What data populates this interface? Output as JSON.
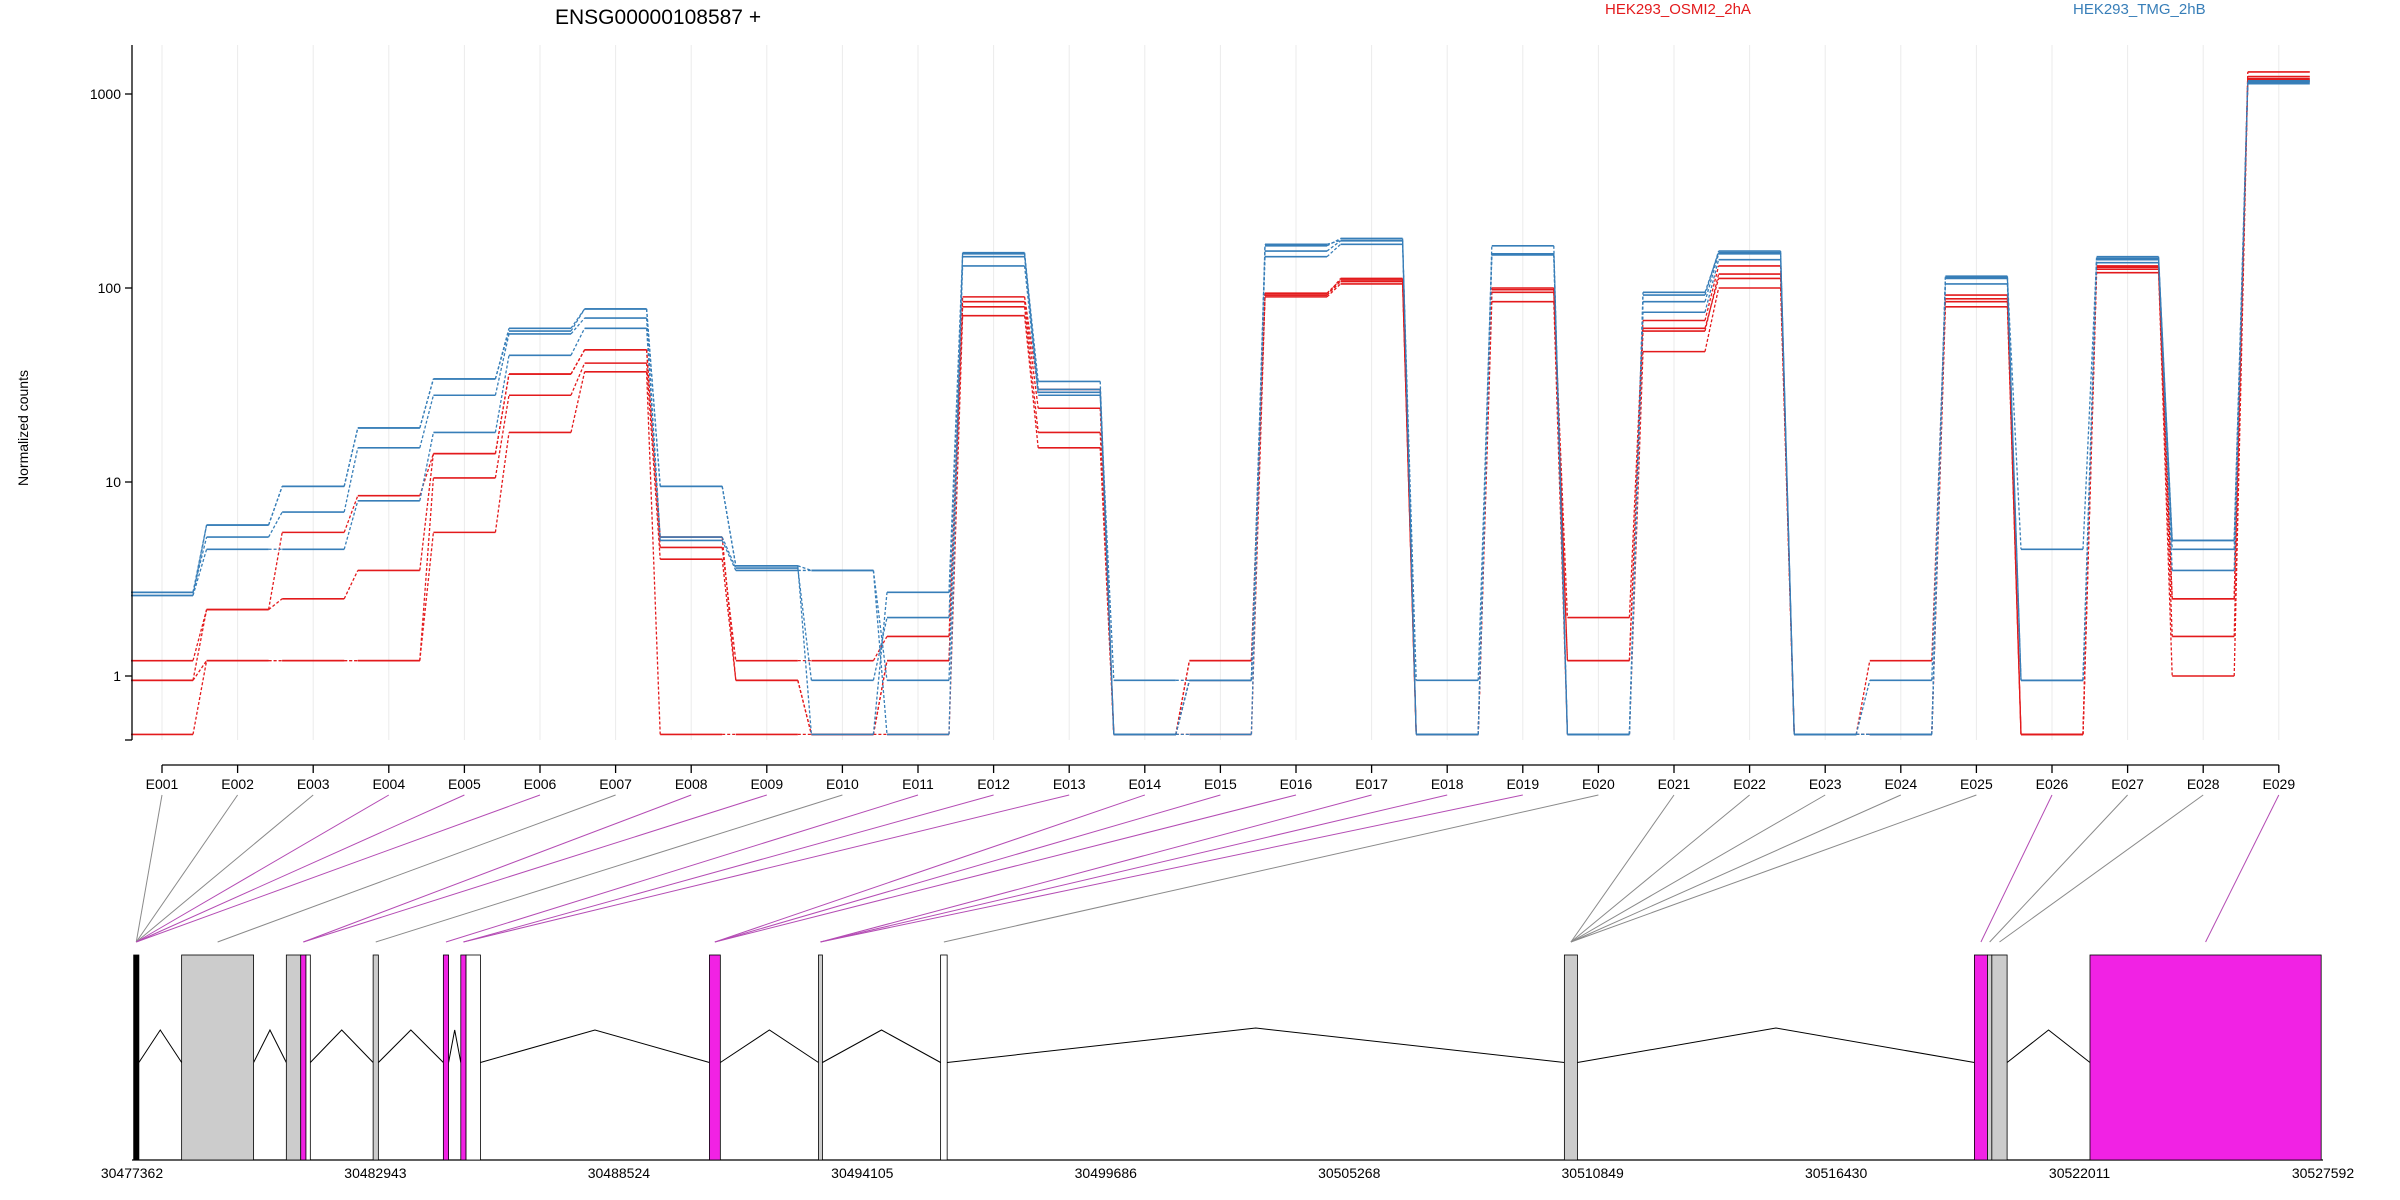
{
  "chart_data": {
    "type": "line",
    "title": "ENSG00000108587 +",
    "ylabel": "Normalized counts",
    "xlabel": "",
    "y_scale": "log",
    "ylim": [
      0.5,
      1800
    ],
    "y_ticks": [
      1,
      10,
      100,
      1000
    ],
    "y_tick_labels": [
      "1",
      "10",
      "100",
      "1000"
    ],
    "grid": "vertical",
    "legend_placement": "top",
    "categories": [
      "E001",
      "E002",
      "E003",
      "E004",
      "E005",
      "E006",
      "E007",
      "E008",
      "E009",
      "E010",
      "E011",
      "E012",
      "E013",
      "E014",
      "E015",
      "E016",
      "E017",
      "E018",
      "E019",
      "E020",
      "E021",
      "E022",
      "E023",
      "E024",
      "E025",
      "E026",
      "E027",
      "E028",
      "E029"
    ],
    "legend": [
      {
        "label": "HEK293_OSMI2_2hA",
        "color": "#E31A1C"
      },
      {
        "label": "HEK293_TMG_2hB",
        "color": "#377EB8"
      }
    ],
    "series": [
      {
        "group": 1,
        "color": "#E31A1C",
        "values": [
          0.5,
          1.2,
          1.2,
          1.2,
          5.5,
          18,
          37,
          0.5,
          0.5,
          0.5,
          0.5,
          72,
          15,
          0.5,
          0.5,
          90,
          105,
          0.5,
          85,
          0.5,
          47,
          100,
          0.5,
          0.5,
          80,
          0.5,
          120,
          1.0,
          1200
        ]
      },
      {
        "group": 1,
        "color": "#E31A1C",
        "values": [
          0.95,
          1.2,
          1.2,
          1.2,
          10.5,
          28,
          41,
          4.0,
          0.95,
          0.5,
          1.2,
          80,
          18,
          0.5,
          1.2,
          92,
          108,
          0.5,
          95,
          1.2,
          62,
          112,
          0.5,
          0.5,
          85,
          0.5,
          125,
          1.6,
          1230
        ]
      },
      {
        "group": 1,
        "color": "#E31A1C",
        "values": [
          1.2,
          2.2,
          2.5,
          3.5,
          14,
          36,
          48,
          4.6,
          1.2,
          1.2,
          1.6,
          85,
          24,
          0.5,
          1.2,
          94,
          110,
          0.5,
          100,
          2.0,
          68,
          130,
          0.5,
          1.2,
          92,
          0.5,
          130,
          2.5,
          1300
        ]
      },
      {
        "group": 1,
        "color": "#E31A1C",
        "values": [
          0.95,
          2.2,
          5.5,
          8.5,
          14,
          36,
          48,
          5.2,
          0.95,
          0.5,
          1.2,
          90,
          30,
          0.5,
          0.95,
          92,
          112,
          0.5,
          98,
          1.2,
          60,
          118,
          0.5,
          0.5,
          88,
          0.5,
          128,
          2.5,
          1180
        ]
      },
      {
        "group": 2,
        "color": "#377EB8",
        "values": [
          2.6,
          4.5,
          4.5,
          8.0,
          18,
          45,
          62,
          5.0,
          3.5,
          3.5,
          0.95,
          130,
          28,
          0.95,
          0.95,
          145,
          168,
          0.95,
          150,
          0.5,
          75,
          140,
          0.5,
          0.95,
          105,
          0.95,
          135,
          3.5,
          1130
        ]
      },
      {
        "group": 2,
        "color": "#377EB8",
        "values": [
          2.7,
          5.2,
          7.0,
          15,
          28,
          58,
          70,
          5.2,
          3.6,
          0.95,
          2.0,
          145,
          30,
          0.5,
          0.95,
          155,
          175,
          0.5,
          150,
          0.5,
          85,
          150,
          0.5,
          0.5,
          112,
          0.95,
          140,
          4.5,
          1150
        ]
      },
      {
        "group": 2,
        "color": "#377EB8",
        "values": [
          2.6,
          6.0,
          9.5,
          19,
          34,
          62,
          78,
          9.5,
          3.7,
          0.5,
          2.7,
          150,
          33,
          0.5,
          0.95,
          165,
          180,
          0.5,
          165,
          0.5,
          92,
          155,
          0.5,
          0.5,
          115,
          0.95,
          145,
          5.0,
          1170
        ]
      },
      {
        "group": 2,
        "color": "#377EB8",
        "values": [
          2.7,
          6.0,
          9.5,
          19,
          34,
          60,
          78,
          9.5,
          3.7,
          3.5,
          0.5,
          152,
          29,
          0.5,
          0.5,
          168,
          176,
          0.5,
          148,
          0.5,
          95,
          152,
          0.5,
          0.5,
          113,
          4.5,
          142,
          5.0,
          1160
        ]
      }
    ],
    "gene_axis_ticks": [
      "30477362",
      "30482943",
      "30488524",
      "30494105",
      "30499686",
      "30505268",
      "30510849",
      "30516430",
      "30522011",
      "30527592"
    ],
    "gene_range": [
      30477362,
      30527592
    ],
    "exon_feature_colors": {
      "tested": "#CCCCCC",
      "significant": "#F122E4",
      "untested": "#FFFFFF"
    },
    "exon_features": [
      {
        "start": 30477400,
        "end": 30477520,
        "type": "solid"
      },
      {
        "start": 30478500,
        "end": 30480150,
        "type": "tested"
      },
      {
        "start": 30480900,
        "end": 30481230,
        "type": "tested"
      },
      {
        "start": 30481230,
        "end": 30481350,
        "type": "significant"
      },
      {
        "start": 30481350,
        "end": 30481450,
        "type": "untested"
      },
      {
        "start": 30482890,
        "end": 30483010,
        "type": "tested"
      },
      {
        "start": 30484500,
        "end": 30484620,
        "type": "significant"
      },
      {
        "start": 30484900,
        "end": 30485020,
        "type": "significant"
      },
      {
        "start": 30485020,
        "end": 30485350,
        "type": "untested"
      },
      {
        "start": 30490600,
        "end": 30490850,
        "type": "significant"
      },
      {
        "start": 30493100,
        "end": 30493190,
        "type": "tested"
      },
      {
        "start": 30495900,
        "end": 30496050,
        "type": "untested"
      },
      {
        "start": 30510200,
        "end": 30510500,
        "type": "tested"
      },
      {
        "start": 30519600,
        "end": 30519900,
        "type": "significant"
      },
      {
        "start": 30519900,
        "end": 30520000,
        "type": "tested"
      },
      {
        "start": 30520000,
        "end": 30520350,
        "type": "tested"
      },
      {
        "start": 30522250,
        "end": 30527550,
        "type": "significant"
      }
    ],
    "exon_links": [
      {
        "exon": 0,
        "feature": 0,
        "significant": false
      },
      {
        "exon": 1,
        "feature": 0,
        "significant": false
      },
      {
        "exon": 2,
        "feature": 0,
        "significant": false
      },
      {
        "exon": 3,
        "feature": 0,
        "significant": true
      },
      {
        "exon": 4,
        "feature": 0,
        "significant": true
      },
      {
        "exon": 5,
        "feature": 0,
        "significant": true
      },
      {
        "exon": 6,
        "feature": 1,
        "significant": false
      },
      {
        "exon": 7,
        "feature": 3,
        "significant": true
      },
      {
        "exon": 8,
        "feature": 3,
        "significant": true
      },
      {
        "exon": 9,
        "feature": 5,
        "significant": false
      },
      {
        "exon": 10,
        "feature": 6,
        "significant": true
      },
      {
        "exon": 11,
        "feature": 7,
        "significant": true
      },
      {
        "exon": 12,
        "feature": 7,
        "significant": true
      },
      {
        "exon": 13,
        "feature": 9,
        "significant": true
      },
      {
        "exon": 14,
        "feature": 9,
        "significant": true
      },
      {
        "exon": 15,
        "feature": 9,
        "significant": true
      },
      {
        "exon": 16,
        "feature": 10,
        "significant": true
      },
      {
        "exon": 17,
        "feature": 10,
        "significant": true
      },
      {
        "exon": 18,
        "feature": 10,
        "significant": true
      },
      {
        "exon": 19,
        "feature": 11,
        "significant": false
      },
      {
        "exon": 20,
        "feature": 12,
        "significant": false
      },
      {
        "exon": 21,
        "feature": 12,
        "significant": false
      },
      {
        "exon": 22,
        "feature": 12,
        "significant": false
      },
      {
        "exon": 23,
        "feature": 12,
        "significant": false
      },
      {
        "exon": 24,
        "feature": 12,
        "significant": false
      },
      {
        "exon": 25,
        "feature": 13,
        "significant": true
      },
      {
        "exon": 26,
        "feature": 14,
        "significant": false
      },
      {
        "exon": 27,
        "feature": 15,
        "significant": false
      },
      {
        "exon": 28,
        "feature": 16,
        "significant": true
      }
    ]
  }
}
